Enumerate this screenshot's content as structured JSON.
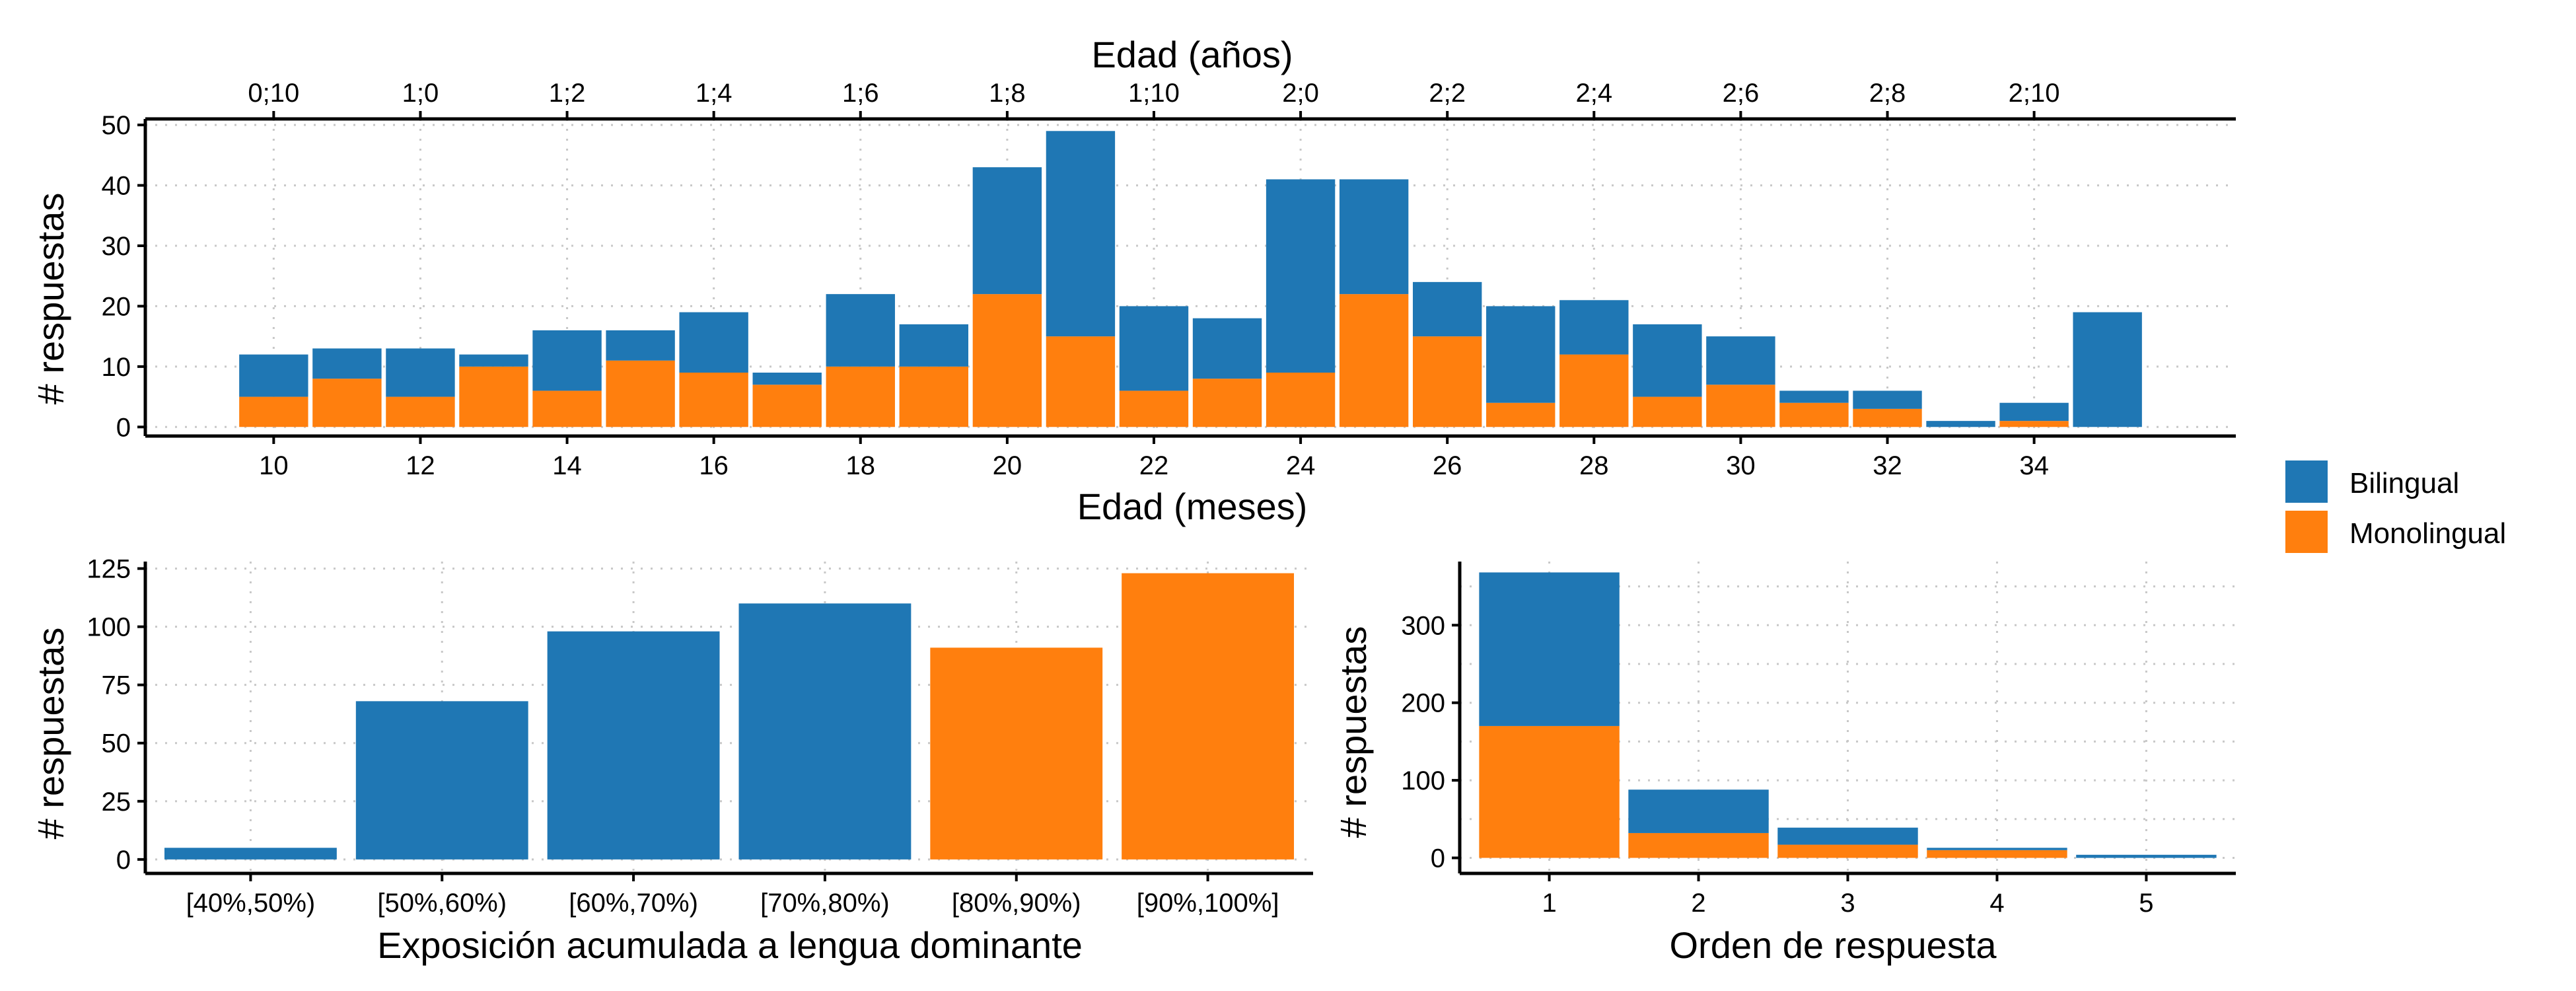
{
  "colors": {
    "Bilingual": "#1f77b4",
    "Monolingual": "#ff7f0e"
  },
  "legend": {
    "placement": "right",
    "items": [
      {
        "label": "Bilingual",
        "color": "#1f77b4"
      },
      {
        "label": "Monolingual",
        "color": "#ff7f0e"
      }
    ]
  },
  "chart_data": [
    {
      "id": "age",
      "type": "bar",
      "stacked": true,
      "xlabel": "Edad (meses)",
      "xlabel_top": "Edad (años)",
      "ylabel": "# respuestas",
      "xlim": [
        8.25,
        36.75
      ],
      "ylim": [
        -1.5,
        51
      ],
      "grid": true,
      "x": [
        10,
        11,
        12,
        13,
        14,
        15,
        16,
        17,
        18,
        19,
        20,
        21,
        22,
        23,
        24,
        25,
        26,
        27,
        28,
        29,
        30,
        31,
        32,
        33,
        34,
        35
      ],
      "series": [
        {
          "name": "Monolingual",
          "values": [
            5,
            8,
            5,
            10,
            6,
            11,
            9,
            7,
            10,
            10,
            22,
            15,
            6,
            8,
            9,
            22,
            15,
            4,
            12,
            5,
            7,
            4,
            3,
            0,
            1,
            0
          ]
        },
        {
          "name": "Bilingual",
          "values": [
            7,
            5,
            8,
            2,
            10,
            5,
            10,
            2,
            12,
            7,
            21,
            34,
            14,
            10,
            32,
            19,
            9,
            16,
            9,
            12,
            8,
            2,
            3,
            1,
            3,
            19
          ]
        }
      ],
      "x_ticks": [
        10,
        12,
        14,
        16,
        18,
        20,
        22,
        24,
        26,
        28,
        30,
        32,
        34
      ],
      "x_ticks_top": [
        {
          "value": 10,
          "label": "0;10"
        },
        {
          "value": 12,
          "label": "1;0"
        },
        {
          "value": 14,
          "label": "1;2"
        },
        {
          "value": 16,
          "label": "1;4"
        },
        {
          "value": 18,
          "label": "1;6"
        },
        {
          "value": 20,
          "label": "1;8"
        },
        {
          "value": 22,
          "label": "1;10"
        },
        {
          "value": 24,
          "label": "2;0"
        },
        {
          "value": 26,
          "label": "2;2"
        },
        {
          "value": 28,
          "label": "2;4"
        },
        {
          "value": 30,
          "label": "2;6"
        },
        {
          "value": 32,
          "label": "2;8"
        },
        {
          "value": 34,
          "label": "2;10"
        }
      ],
      "y_ticks": [
        0,
        10,
        20,
        30,
        40,
        50
      ]
    },
    {
      "id": "exposure",
      "type": "bar",
      "xlabel": "Exposición acumulada a lengua dominante",
      "ylabel": "# respuestas",
      "ylim": [
        -6,
        128
      ],
      "grid": true,
      "categories": [
        "[40%,50%)",
        "[50%,60%)",
        "[60%,70%)",
        "[70%,80%)",
        "[80%,90%)",
        "[90%,100%]"
      ],
      "values": [
        5,
        68,
        98,
        110,
        91,
        123
      ],
      "groups": [
        "Bilingual",
        "Bilingual",
        "Bilingual",
        "Bilingual",
        "Monolingual",
        "Monolingual"
      ],
      "y_ticks": [
        0,
        25,
        50,
        75,
        100,
        125
      ]
    },
    {
      "id": "order",
      "type": "bar",
      "stacked": true,
      "xlabel": "Orden de respuesta",
      "ylabel": "# respuestas",
      "ylim": [
        -20,
        382
      ],
      "grid": true,
      "categories": [
        "1",
        "2",
        "3",
        "4",
        "5"
      ],
      "series": [
        {
          "name": "Monolingual",
          "values": [
            170,
            32,
            17,
            10,
            0
          ]
        },
        {
          "name": "Bilingual",
          "values": [
            198,
            56,
            22,
            3,
            4
          ]
        }
      ],
      "y_ticks": [
        0,
        100,
        200,
        300
      ]
    }
  ]
}
